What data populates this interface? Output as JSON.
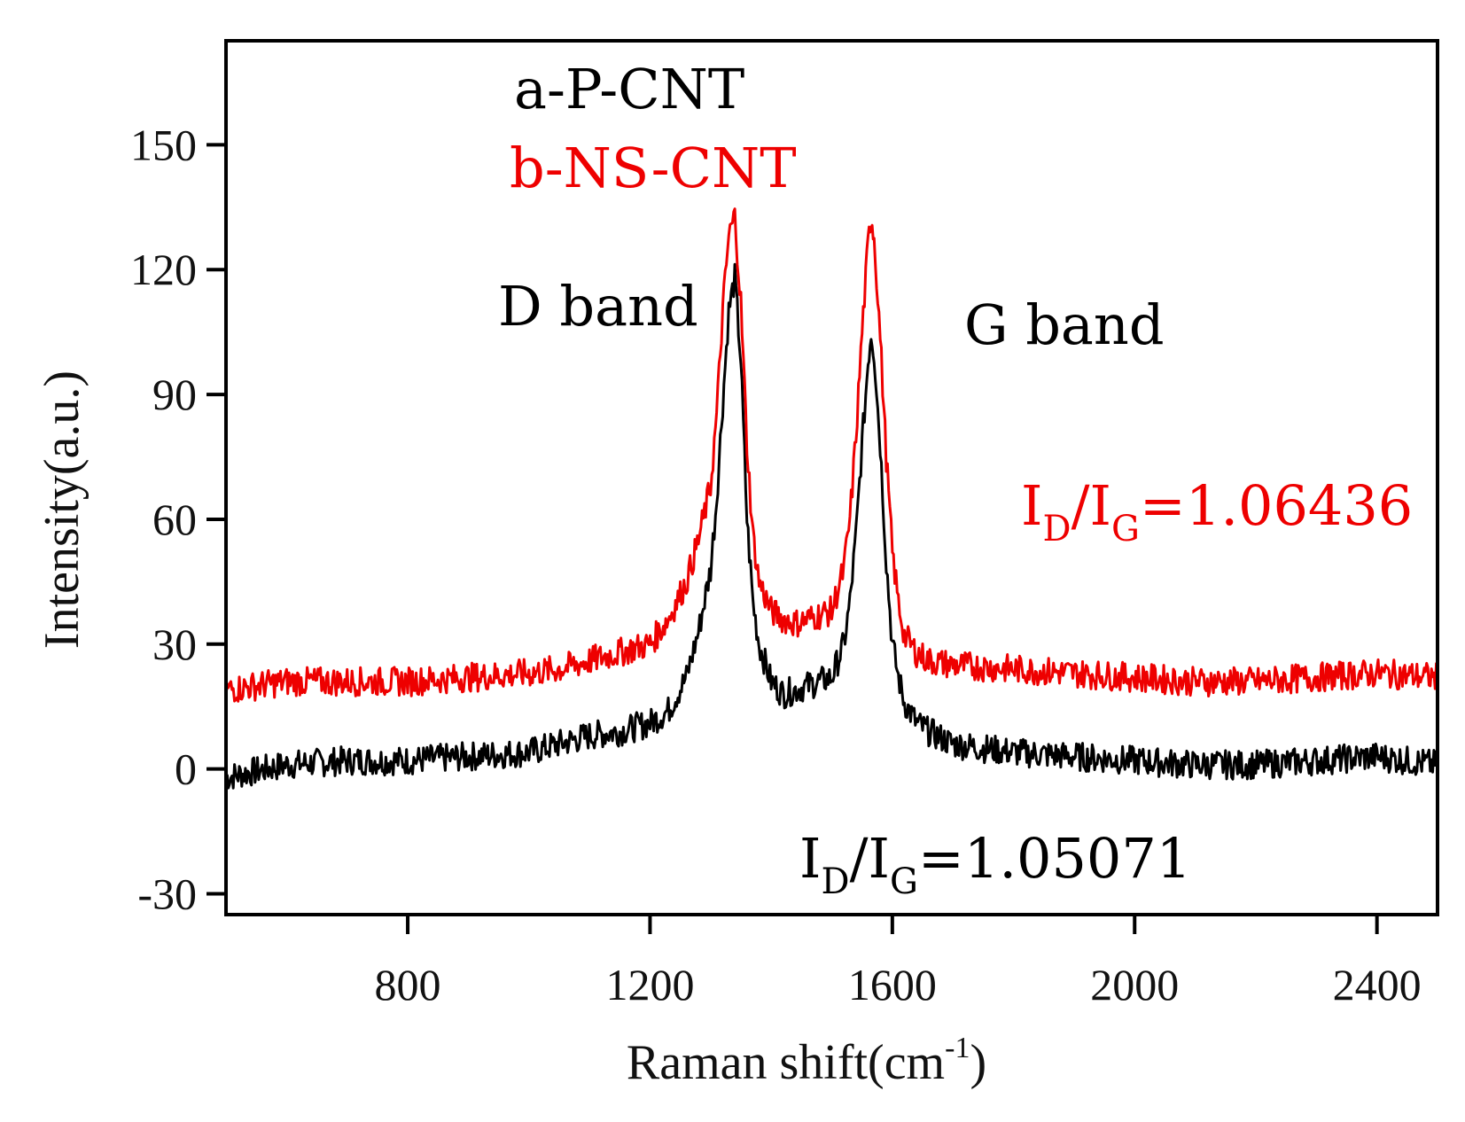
{
  "chart_data": {
    "type": "line",
    "title": "",
    "xlabel": "Raman shift(cm",
    "xlabel_sup": "-1",
    "xlabel_end": ")",
    "ylabel": "Intensity(a.u.)",
    "xlim": [
      500,
      2500
    ],
    "ylim": [
      -35,
      175
    ],
    "x_ticks": [
      800,
      1200,
      1600,
      2000,
      2400
    ],
    "x_tick_labels": [
      "800",
      "1200",
      "1600",
      "2000",
      "2400"
    ],
    "y_ticks": [
      -30,
      0,
      30,
      60,
      90,
      120,
      150
    ],
    "y_tick_labels": [
      "-30",
      "0",
      "30",
      "60",
      "90",
      "120",
      "150"
    ],
    "grid": false,
    "legend": [
      {
        "label": "a-P-CNT",
        "color": "#000000"
      },
      {
        "label": "b-NS-CNT",
        "color": "#ee0000"
      }
    ],
    "annotations": {
      "d_band": "D band",
      "g_band": "G band",
      "ratio_red": {
        "pre": "I",
        "sub1": "D",
        "mid": "/I",
        "sub2": "G",
        "post": "=1.06436"
      },
      "ratio_black": {
        "pre": "I",
        "sub1": "D",
        "mid": "/I",
        "sub2": "G",
        "post": "=1.05071"
      }
    },
    "series": [
      {
        "name": "a-P-CNT",
        "color": "#000000",
        "x": [
          500,
          600,
          700,
          800,
          900,
          1000,
          1050,
          1100,
          1150,
          1200,
          1230,
          1260,
          1280,
          1300,
          1310,
          1320,
          1330,
          1340,
          1350,
          1360,
          1370,
          1380,
          1400,
          1420,
          1440,
          1460,
          1480,
          1500,
          1520,
          1530,
          1540,
          1550,
          1560,
          1565,
          1570,
          1580,
          1590,
          1600,
          1610,
          1620,
          1640,
          1660,
          1700,
          1800,
          1900,
          2000,
          2100,
          2200,
          2300,
          2400,
          2500
        ],
        "y": [
          -2,
          1,
          2,
          2,
          3,
          4,
          6,
          8,
          9,
          11,
          14,
          22,
          33,
          48,
          65,
          88,
          110,
          118,
          98,
          60,
          40,
          30,
          21,
          18,
          19,
          20,
          21,
          22,
          30,
          40,
          56,
          78,
          98,
          105,
          100,
          78,
          50,
          30,
          22,
          16,
          11,
          9,
          6,
          4,
          3,
          2,
          1,
          1,
          2,
          3,
          1
        ]
      },
      {
        "name": "b-NS-CNT",
        "color": "#ee0000",
        "x": [
          500,
          600,
          700,
          800,
          900,
          1000,
          1050,
          1100,
          1150,
          1200,
          1230,
          1260,
          1280,
          1300,
          1310,
          1320,
          1330,
          1340,
          1350,
          1360,
          1370,
          1380,
          1400,
          1420,
          1440,
          1460,
          1480,
          1500,
          1520,
          1530,
          1540,
          1550,
          1560,
          1565,
          1570,
          1580,
          1590,
          1600,
          1610,
          1620,
          1640,
          1660,
          1700,
          1800,
          1900,
          2000,
          2100,
          2200,
          2300,
          2400,
          2500
        ],
        "y": [
          19,
          21,
          21,
          21,
          22,
          23,
          24,
          26,
          28,
          30,
          36,
          45,
          55,
          68,
          85,
          110,
          128,
          133,
          112,
          78,
          56,
          45,
          38,
          36,
          35,
          36,
          37,
          38,
          48,
          60,
          80,
          105,
          126,
          133,
          128,
          104,
          75,
          52,
          40,
          32,
          28,
          26,
          25,
          24,
          23,
          22,
          21,
          21,
          22,
          23,
          22
        ]
      }
    ]
  }
}
